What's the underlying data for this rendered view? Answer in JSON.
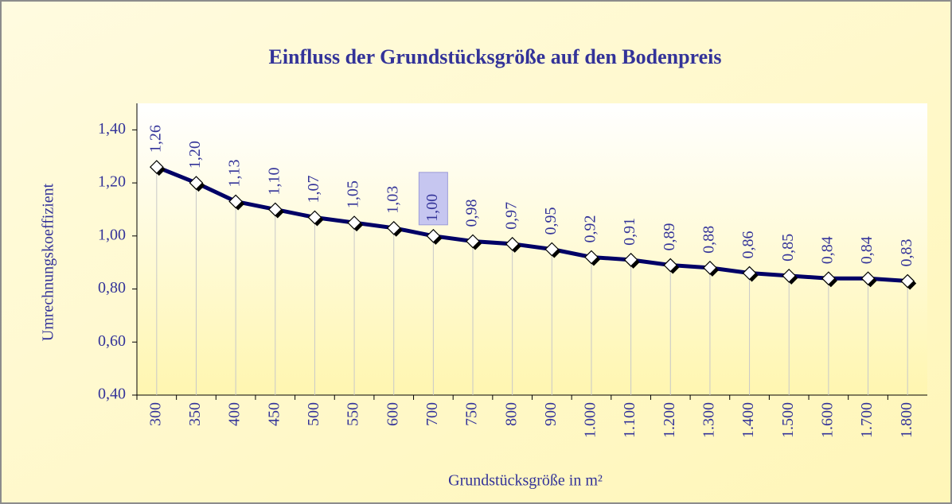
{
  "chart_data": {
    "type": "line",
    "title": "Einfluss der Grundstücksgröße auf den Bodenpreis",
    "x_label": "Grundstücksgröße in m²",
    "y_label": "Umrechnungskoeffizient",
    "categories": [
      "300",
      "350",
      "400",
      "450",
      "500",
      "550",
      "600",
      "700",
      "750",
      "800",
      "900",
      "1.000",
      "1.100",
      "1.200",
      "1.300",
      "1.400",
      "1.500",
      "1.600",
      "1.700",
      "1.800"
    ],
    "values": [
      1.26,
      1.2,
      1.13,
      1.1,
      1.07,
      1.05,
      1.03,
      1.0,
      0.98,
      0.97,
      0.95,
      0.92,
      0.91,
      0.89,
      0.88,
      0.86,
      0.85,
      0.84,
      0.84,
      0.83
    ],
    "value_labels": [
      "1,26",
      "1,20",
      "1,13",
      "1,10",
      "1,07",
      "1,05",
      "1,03",
      "1,00",
      "0,98",
      "0,97",
      "0,95",
      "0,92",
      "0,91",
      "0,89",
      "0,88",
      "0,86",
      "0,85",
      "0,84",
      "0,84",
      "0,83"
    ],
    "color": "#000066",
    "ylim": [
      0.4,
      1.5
    ],
    "yticks": [
      {
        "value": 0.4,
        "label": "0,40"
      },
      {
        "value": 0.6,
        "label": "0,60"
      },
      {
        "value": 0.8,
        "label": "0,80"
      },
      {
        "value": 1.0,
        "label": "1,00"
      },
      {
        "value": 1.2,
        "label": "1,20"
      },
      {
        "value": 1.4,
        "label": "1,40"
      }
    ],
    "drop_lines": true
  }
}
